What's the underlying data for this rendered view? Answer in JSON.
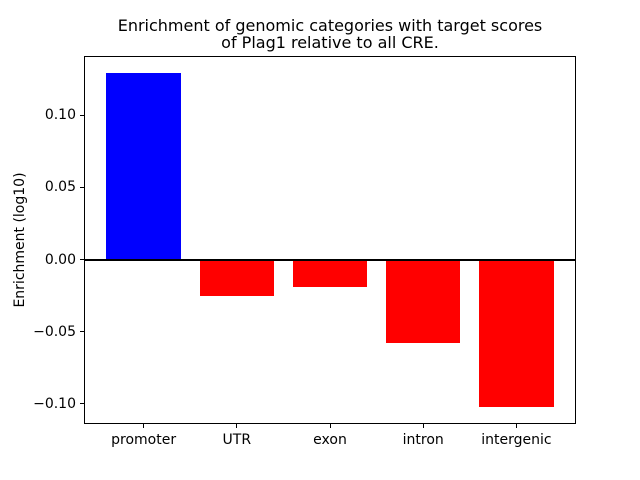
{
  "chart_data": {
    "type": "bar",
    "title": "Enrichment of genomic categories with target scores\nof Plag1 relative to all CRE.",
    "ylabel": "Enrichment (log10)",
    "xlabel": "",
    "categories": [
      "promoter",
      "UTR",
      "exon",
      "intron",
      "intergenic"
    ],
    "values": [
      0.129,
      -0.025,
      -0.019,
      -0.058,
      -0.102
    ],
    "colors": [
      "#0000ff",
      "#ff0000",
      "#ff0000",
      "#ff0000",
      "#ff0000"
    ],
    "yticks": [
      {
        "value": 0.1,
        "label": "0.10"
      },
      {
        "value": 0.05,
        "label": "0.05"
      },
      {
        "value": 0.0,
        "label": "0.00"
      },
      {
        "value": -0.05,
        "label": "−0.05"
      },
      {
        "value": -0.1,
        "label": "−0.10"
      }
    ],
    "ylim": [
      -0.114,
      0.141
    ],
    "xlim": [
      -0.64,
      4.64
    ],
    "bar_width": 0.8,
    "zero_line": true,
    "grid": false,
    "legend": "none",
    "background": "#ffffff"
  }
}
